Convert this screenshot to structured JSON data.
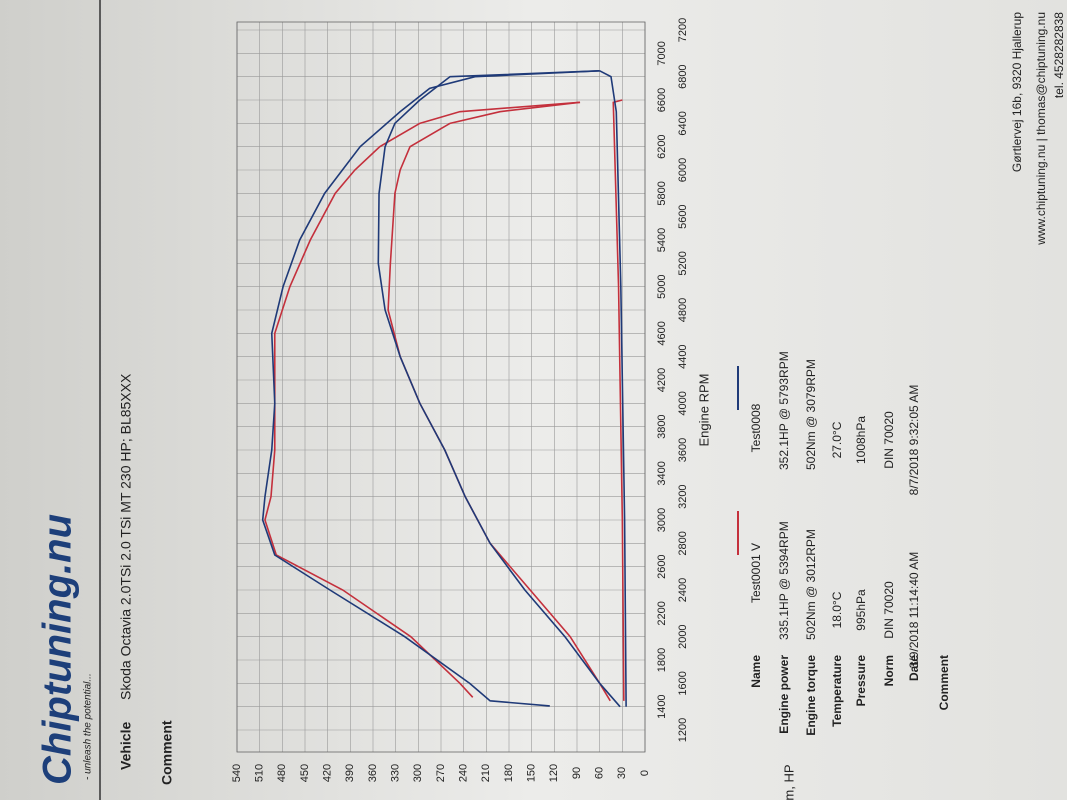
{
  "header": {
    "brand": "Chiptuning.nu",
    "tagline": "- unleash the potential...",
    "vehicle_label": "Vehicle",
    "vehicle": "Skoda Octavia 2.0TSi 2.0 TSi MT 230 HP; BL85XXX",
    "comment_label": "Comment",
    "address": "Gørtlervej 16b, 9320 Hjallerup",
    "web": "www.chiptuning.nu | thomas@chiptuning.nu",
    "phone": "tel. 4528282838"
  },
  "chart_data": {
    "type": "line",
    "x_label": "Engine RPM",
    "y_label": "Nm, HP",
    "xlim": [
      1200,
      7200
    ],
    "xticks": [
      1200,
      1400,
      1600,
      1800,
      2000,
      2200,
      2400,
      2600,
      2800,
      3000,
      3200,
      3400,
      3600,
      3800,
      4000,
      4200,
      4400,
      4600,
      4800,
      5000,
      5200,
      5400,
      5600,
      5800,
      6000,
      6200,
      6400,
      6600,
      6800,
      7000,
      7200
    ],
    "ylim": [
      0,
      540
    ],
    "yticks": [
      0,
      30,
      60,
      90,
      120,
      150,
      180,
      210,
      240,
      270,
      300,
      330,
      360,
      390,
      420,
      450,
      480,
      510,
      540
    ],
    "grid": true,
    "series": [
      {
        "name": "Test0001 V",
        "color": "#c4303c",
        "curves": [
          {
            "x": [
              1480,
              1600,
              2000,
              2400,
              2700,
              3000,
              3200,
              3600,
              4000,
              4600,
              5000,
              5400,
              5800,
              6000,
              6200,
              6400,
              6500,
              6580
            ],
            "values": [
              228,
              245,
              310,
              400,
              488,
              503,
              495,
              490,
              490,
              490,
              470,
              443,
              410,
              384,
              351,
              298,
              245,
              86
            ]
          },
          {
            "x": [
              1450,
              1600,
              2000,
              2400,
              2800,
              3200,
              3600,
              4000,
              4400,
              4800,
              5200,
              5400,
              5800,
              6000,
              6200,
              6400,
              6500,
              6580
            ],
            "values": [
              46,
              60,
              99,
              152,
              205,
              238,
              265,
              298,
              324,
              340,
              337,
              335,
              331,
              324,
              311,
              258,
              192,
              86
            ]
          },
          {
            "x": [
              1450,
              3000,
              5000,
              6580,
              6600
            ],
            "values": [
              28,
              30,
              35,
              42,
              30
            ]
          }
        ]
      },
      {
        "name": "Test0008",
        "color": "#1f3a78",
        "curves": [
          {
            "x": [
              1406,
              1450,
              1600,
              2000,
              2400,
              2700,
              3000,
              3200,
              3600,
              4000,
              4600,
              5000,
              5400,
              5800,
              6200,
              6500,
              6700,
              6800,
              6850
            ],
            "values": [
              126,
              205,
              232,
              318,
              417,
              490,
              506,
              503,
              494,
              490,
              494,
              479,
              457,
              424,
              377,
              324,
              285,
              225,
              60
            ]
          },
          {
            "x": [
              1400,
              1600,
              2000,
              2400,
              2800,
              3200,
              3600,
              4000,
              4400,
              4800,
              5200,
              5800,
              6200,
              6400,
              6600,
              6800,
              6850
            ],
            "values": [
              33,
              60,
              106,
              159,
              205,
              238,
              265,
              298,
              324,
              344,
              353,
              352,
              344,
              331,
              298,
              258,
              60
            ]
          },
          {
            "x": [
              1400,
              3000,
              5000,
              6500,
              6800,
              6850
            ],
            "values": [
              25,
              27,
              32,
              38,
              45,
              60
            ]
          }
        ]
      }
    ],
    "table": {
      "labels": [
        "Name",
        "Engine power",
        "Engine torque",
        "Temperature",
        "Pressure",
        "Norm",
        "Date",
        "Comment"
      ],
      "columns": [
        [
          "Test0001 V",
          "335.1HP @  5394RPM",
          "502Nm @ 3012RPM",
          "18.0°C",
          "995hPa",
          "DIN 70020",
          "3/9/2018 11:14:40 AM"
        ],
        [
          "Test0008",
          "352.1HP @  5793RPM",
          "502Nm @ 3079RPM",
          "27.0°C",
          "1008hPa",
          "DIN 70020",
          "8/7/2018 9:32:05 AM"
        ]
      ]
    }
  }
}
